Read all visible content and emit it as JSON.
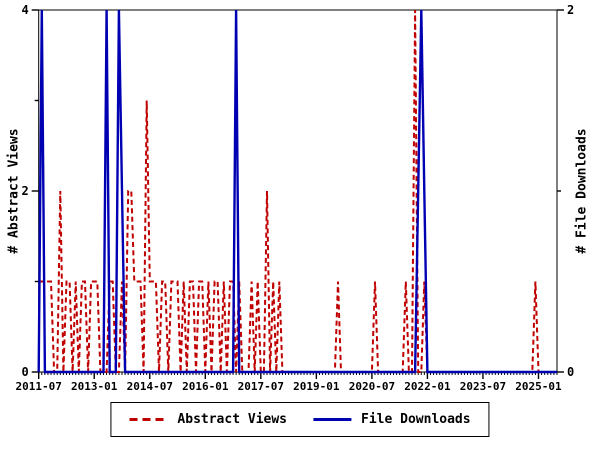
{
  "chart_data": {
    "type": "line",
    "title": "",
    "x_axis": {
      "start_month": "2011-07",
      "month_count": 169,
      "minor_tick_every_months": 1,
      "major_tick_labels": [
        "2011-07",
        "2013-01",
        "2014-07",
        "2016-01",
        "2017-07",
        "2019-01",
        "2020-07",
        "2022-01",
        "2023-07",
        "2025-01"
      ],
      "major_tick_month_indexes": [
        0,
        18,
        36,
        54,
        72,
        90,
        108,
        126,
        144,
        162
      ]
    },
    "left_axis": {
      "title": "# Abstract Views",
      "min": 0,
      "max": 4,
      "tick_values": [
        0,
        1,
        2,
        3,
        4
      ],
      "tick_labels": {
        "0": "0",
        "2": "2",
        "4": "4"
      }
    },
    "right_axis": {
      "title": "# File Downloads",
      "min": 0,
      "max": 2,
      "tick_values": [
        0,
        1,
        2
      ],
      "tick_labels": {
        "0": "0",
        "2": "2"
      }
    },
    "series": [
      {
        "name": "Abstract Views",
        "color": "#c00000",
        "style": "dashed",
        "axis": "left",
        "values": [
          1,
          1,
          1,
          1,
          1,
          0,
          0,
          2,
          0,
          1,
          1,
          0,
          1,
          0,
          1,
          1,
          0,
          1,
          1,
          1,
          0,
          0,
          0,
          1,
          1,
          0,
          0,
          1,
          0,
          2,
          2,
          1,
          1,
          1,
          0,
          3,
          1,
          1,
          1,
          0,
          1,
          1,
          0,
          1,
          1,
          1,
          0,
          1,
          0,
          1,
          1,
          0,
          1,
          1,
          0,
          1,
          0,
          1,
          1,
          0,
          1,
          0,
          1,
          1,
          0,
          1,
          0,
          0,
          0,
          1,
          0,
          1,
          0,
          0,
          2,
          0,
          1,
          0,
          1,
          0,
          0,
          0,
          0,
          0,
          0,
          0,
          0,
          0,
          0,
          0,
          0,
          0,
          0,
          0,
          0,
          0,
          0,
          1,
          0,
          0,
          0,
          0,
          0,
          0,
          0,
          0,
          0,
          0,
          0,
          1,
          0,
          0,
          0,
          0,
          0,
          0,
          0,
          0,
          0,
          1,
          0,
          0,
          4,
          0,
          0,
          1,
          0,
          0,
          0,
          0,
          0,
          0,
          0,
          0,
          0,
          0,
          0,
          0,
          0,
          0,
          0,
          0,
          0,
          0,
          0,
          0,
          0,
          0,
          0,
          0,
          0,
          0,
          0,
          0,
          0,
          0,
          0,
          0,
          0,
          0,
          0,
          1,
          0,
          0,
          0,
          0,
          0,
          0,
          0
        ]
      },
      {
        "name": "File Downloads",
        "color": "#0000b3",
        "style": "solid",
        "axis": "right",
        "values": [
          0,
          2,
          0,
          0,
          0,
          0,
          0,
          0,
          0,
          0,
          0,
          0,
          0,
          0,
          0,
          0,
          0,
          0,
          0,
          0,
          0,
          0,
          2,
          0,
          0,
          0,
          2,
          1,
          0,
          0,
          0,
          0,
          0,
          0,
          0,
          0,
          0,
          0,
          0,
          0,
          0,
          0,
          0,
          0,
          0,
          0,
          0,
          0,
          0,
          0,
          0,
          0,
          0,
          0,
          0,
          0,
          0,
          0,
          0,
          0,
          0,
          0,
          0,
          0,
          2,
          0,
          0,
          0,
          0,
          0,
          0,
          0,
          0,
          0,
          0,
          0,
          0,
          0,
          0,
          0,
          0,
          0,
          0,
          0,
          0,
          0,
          0,
          0,
          0,
          0,
          0,
          0,
          0,
          0,
          0,
          0,
          0,
          0,
          0,
          0,
          0,
          0,
          0,
          0,
          0,
          0,
          0,
          0,
          0,
          0,
          0,
          0,
          0,
          0,
          0,
          0,
          0,
          0,
          0,
          0,
          0,
          0,
          0,
          1,
          2,
          1,
          0,
          0,
          0,
          0,
          0,
          0,
          0,
          0,
          0,
          0,
          0,
          0,
          0,
          0,
          0,
          0,
          0,
          0,
          0,
          0,
          0,
          0,
          0,
          0,
          0,
          0,
          0,
          0,
          0,
          0,
          0,
          0,
          0,
          0,
          0,
          0,
          0,
          0,
          0,
          0,
          0,
          0,
          0
        ]
      }
    ],
    "legend": {
      "position": "bottom-center",
      "border": true
    },
    "grid": "off",
    "colors": {
      "axis": "#000000",
      "background": "#ffffff"
    }
  }
}
